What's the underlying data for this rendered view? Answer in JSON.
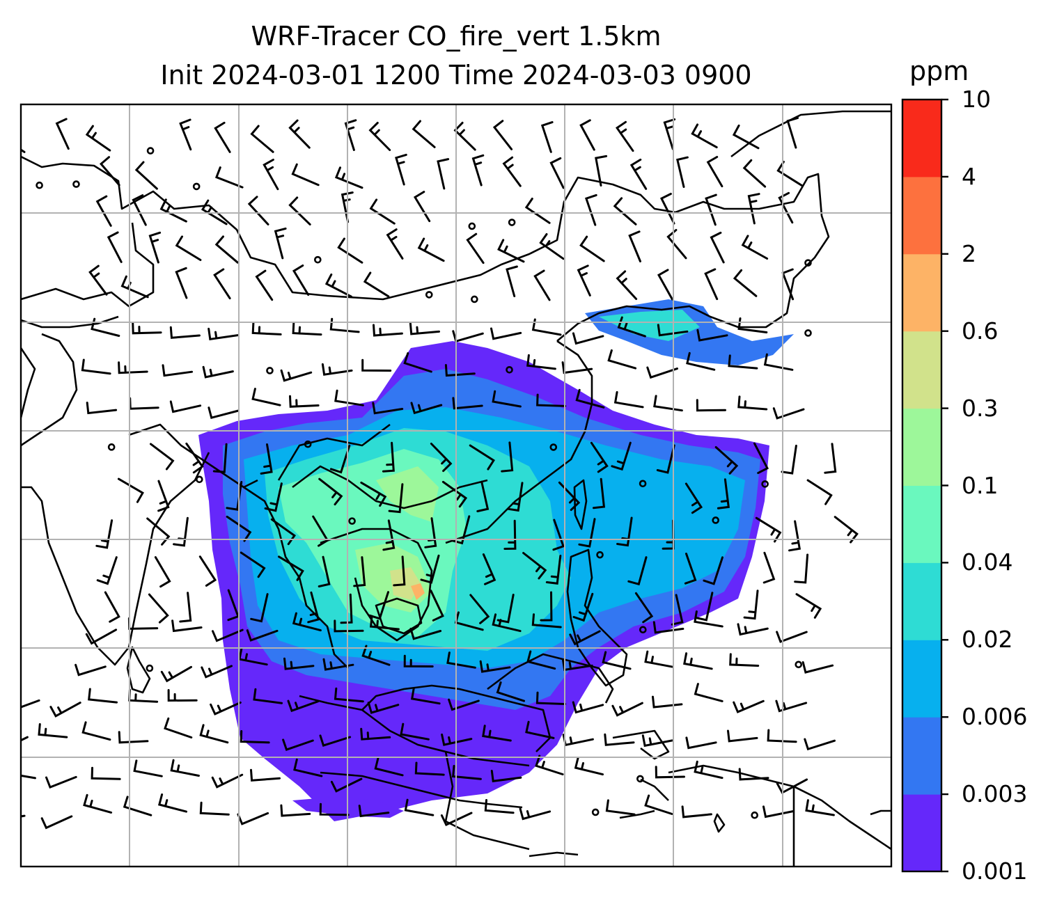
{
  "title": {
    "line1": "WRF-Tracer CO_fire_vert 1.5km",
    "line2": "Init 2024-03-01 1200 Time 2024-03-03 0900"
  },
  "colorbar": {
    "unit": "ppm",
    "levels": [
      "0.001",
      "0.003",
      "0.006",
      "0.02",
      "0.04",
      "0.1",
      "0.3",
      "0.6",
      "2",
      "4",
      "10"
    ],
    "colors": [
      "#6528fa",
      "#3377f2",
      "#07b0ee",
      "#2edcd4",
      "#6af8be",
      "#9df79a",
      "#d1e28b",
      "#fdb366",
      "#fd713e",
      "#f92a1b"
    ]
  },
  "map": {
    "gridlines": true,
    "wind_barbs": true,
    "field": "CO_fire_vert",
    "level": "1.5km"
  }
}
